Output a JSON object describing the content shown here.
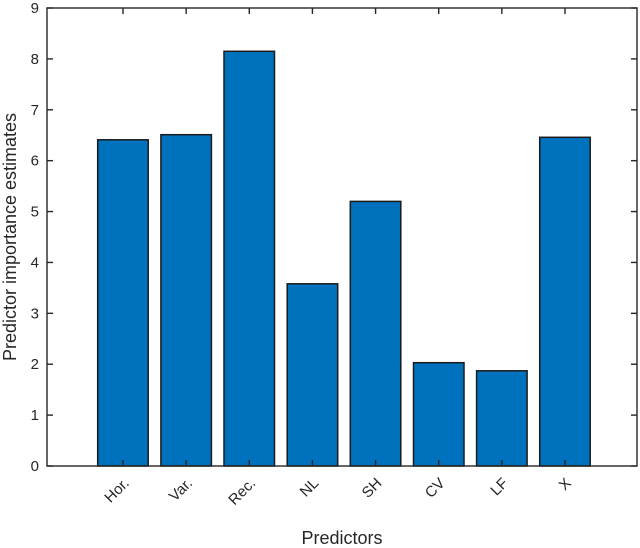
{
  "figure": {
    "background": "#ffffff"
  },
  "chart_data": {
    "type": "bar",
    "categories": [
      "Hor.",
      "Var.",
      "Rec.",
      "NL",
      "SH",
      "CV",
      "LF",
      "X"
    ],
    "values": [
      6.41,
      6.51,
      8.15,
      3.58,
      5.2,
      2.03,
      1.87,
      6.46
    ],
    "title": "",
    "xlabel": "Predictors",
    "ylabel": "Predictor importance estimates",
    "ylim": [
      0,
      9
    ],
    "yticks": [
      0,
      1,
      2,
      3,
      4,
      5,
      6,
      7,
      8,
      9
    ],
    "bar_width_fraction": 0.8,
    "grid": false,
    "legend": null,
    "bar_color": "#0072BD",
    "bar_edge_color": "#1a1a1a",
    "axis_color": "#262626",
    "label_color": "#262626"
  }
}
